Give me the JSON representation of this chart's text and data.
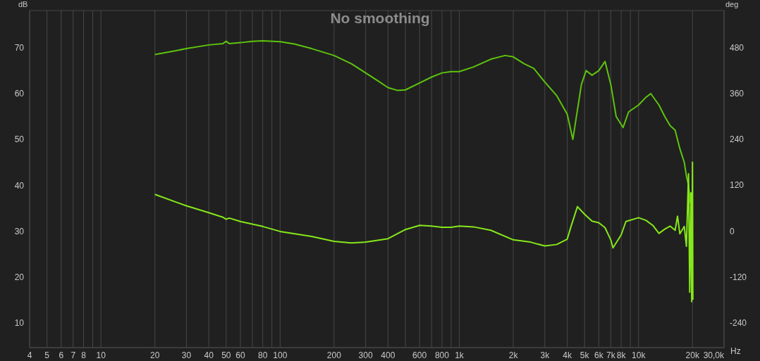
{
  "chart_data": {
    "type": "line",
    "title": "No smoothing",
    "xlabel": "Hz",
    "ylabel": "dB",
    "y2label": "deg",
    "log": "x",
    "grid": true,
    "marker": "none",
    "line_style": "solid",
    "xlim": [
      4,
      30000
    ],
    "xticks": [
      4,
      5,
      6,
      7,
      8,
      {
        "value": 9,
        "label": null
      },
      10,
      20,
      30,
      40,
      50,
      60,
      {
        "value": 70,
        "label": null
      },
      80,
      {
        "value": 90,
        "label": null
      },
      100,
      200,
      300,
      400,
      {
        "value": 500,
        "label": null
      },
      600,
      {
        "value": 700,
        "label": null
      },
      800,
      {
        "value": 900,
        "label": null
      },
      {
        "value": 1000,
        "label": "1k"
      },
      {
        "value": 2000,
        "label": "2k"
      },
      {
        "value": 3000,
        "label": "3k"
      },
      {
        "value": 4000,
        "label": "4k"
      },
      {
        "value": 5000,
        "label": "5k"
      },
      {
        "value": 6000,
        "label": "6k"
      },
      {
        "value": 7000,
        "label": "7k"
      },
      {
        "value": 8000,
        "label": "8k"
      },
      {
        "value": 9000,
        "label": null
      },
      {
        "value": 10000,
        "label": "10k"
      },
      {
        "value": 20000,
        "label": "20k"
      },
      {
        "value": 30000,
        "label": "30,0k"
      }
    ],
    "ylim": [
      4.6,
      78.1
    ],
    "yticks": [
      10,
      20,
      30,
      40,
      50,
      60,
      70
    ],
    "y2lim": [
      -305,
      577
    ],
    "y2ticks": [
      -240,
      -120,
      0,
      120,
      240,
      360,
      480
    ],
    "series": [
      {
        "color": "#5ec40e",
        "x": [
          20,
          25,
          30,
          40,
          48,
          50,
          52,
          60,
          70,
          80,
          100,
          120,
          150,
          200,
          250,
          300,
          350,
          400,
          450,
          500,
          600,
          700,
          800,
          900,
          1000,
          1200,
          1500,
          1800,
          2000,
          2300,
          2600,
          3000,
          3500,
          4000,
          4300,
          4500,
          4800,
          5100,
          5500,
          6000,
          6500,
          7000,
          7500,
          8200,
          8800,
          10000,
          11000,
          11700,
          13000,
          14000,
          15000,
          16000,
          17000,
          18000,
          18500,
          19000,
          19500
        ],
        "values": [
          68.5,
          69.2,
          69.8,
          70.6,
          70.9,
          71.4,
          70.9,
          71.1,
          71.4,
          71.5,
          71.3,
          70.8,
          69.8,
          68.3,
          66.5,
          64.5,
          62.8,
          61.3,
          60.7,
          60.8,
          62.3,
          63.6,
          64.5,
          64.8,
          64.8,
          65.8,
          67.5,
          68.3,
          68.0,
          66.5,
          65.5,
          62.5,
          59.5,
          55.5,
          50,
          55,
          62,
          65,
          64,
          65,
          67,
          62,
          55,
          52.6,
          56,
          57.5,
          59.2,
          60,
          57.5,
          55,
          53,
          52,
          48,
          45,
          42,
          40,
          36
        ]
      },
      {
        "color": "#86e81a",
        "axis": "y2",
        "x": [
          20,
          30,
          40,
          48,
          50,
          52,
          60,
          80,
          100,
          150,
          200,
          250,
          300,
          350,
          400,
          500,
          600,
          700,
          800,
          900,
          1000,
          1200,
          1500,
          2000,
          2500,
          3000,
          3500,
          4000,
          4200,
          4560,
          5000,
          5500,
          6000,
          6500,
          7000,
          7200,
          8000,
          8500,
          10000,
          11000,
          12000,
          13000,
          14000,
          15000,
          16000,
          16500,
          17000,
          18000,
          18500,
          19000,
          19300,
          19600,
          19800,
          20000,
          20100
        ],
        "values": [
          96,
          66,
          48,
          36,
          31,
          34,
          25,
          12,
          -1,
          -14,
          -27,
          -31,
          -29,
          -24,
          -20,
          4,
          15,
          13,
          10,
          10,
          13,
          11,
          2,
          -23,
          -29,
          -39,
          -35,
          -21,
          12,
          64,
          44,
          26,
          22,
          9,
          -23,
          -44,
          -10,
          25,
          35,
          28,
          15,
          -6,
          5,
          13,
          2,
          39,
          -7,
          12,
          -40,
          150,
          -160,
          100,
          -185,
          180,
          -180
        ]
      }
    ]
  }
}
